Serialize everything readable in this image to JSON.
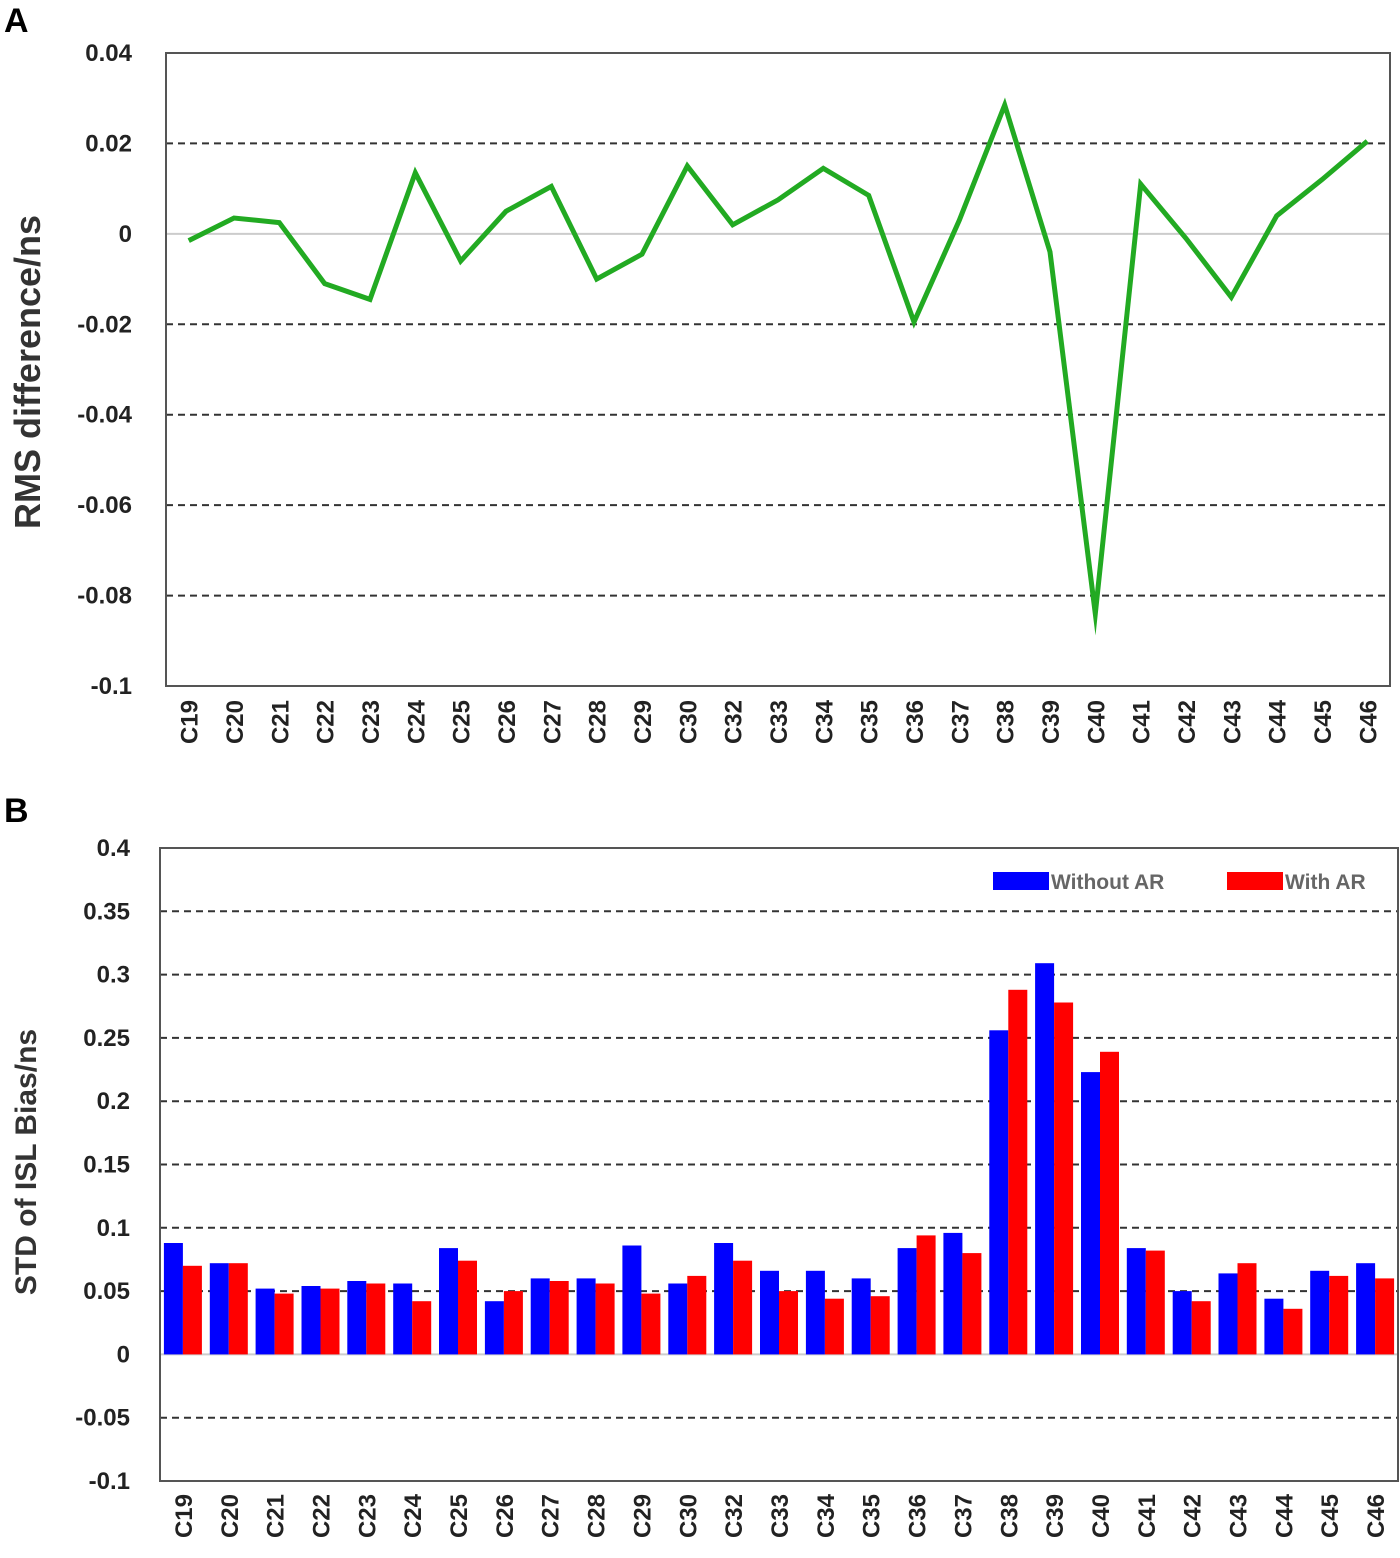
{
  "chart_data": [
    {
      "panel": "A",
      "type": "line",
      "title": "",
      "xlabel": "",
      "ylabel": "RMS difference/ns",
      "ylim": [
        -0.1,
        0.04
      ],
      "yticks": [
        "0.04",
        "0.02",
        "0",
        "-0.02",
        "-0.04",
        "-0.06",
        "-0.08",
        "-0.1"
      ],
      "categories": [
        "C19",
        "C20",
        "C21",
        "C22",
        "C23",
        "C24",
        "C25",
        "C26",
        "C27",
        "C28",
        "C29",
        "C30",
        "C32",
        "C33",
        "C34",
        "C35",
        "C36",
        "C37",
        "C38",
        "C39",
        "C40",
        "C41",
        "C42",
        "C43",
        "C44",
        "C45",
        "C46"
      ],
      "series": [
        {
          "color": "#22aa22",
          "values": [
            -0.0015,
            0.0035,
            0.0025,
            -0.011,
            -0.0145,
            0.0135,
            -0.006,
            0.005,
            0.0105,
            -0.01,
            -0.0045,
            0.015,
            0.002,
            0.0075,
            0.0145,
            0.0085,
            -0.0195,
            0.003,
            0.0285,
            -0.004,
            -0.084,
            0.011,
            -0.001,
            -0.014,
            0.004,
            0.012,
            0.0205
          ]
        }
      ],
      "grid": "dashed"
    },
    {
      "panel": "B",
      "type": "bar",
      "title": "",
      "xlabel": "",
      "ylabel": "STD of ISL Bias/ns",
      "ylim": [
        -0.1,
        0.4
      ],
      "yticks": [
        "0.4",
        "0.35",
        "0.3",
        "0.25",
        "0.2",
        "0.15",
        "0.1",
        "0.05",
        "0",
        "-0.05",
        "-0.1"
      ],
      "categories": [
        "C19",
        "C20",
        "C21",
        "C22",
        "C23",
        "C24",
        "C25",
        "C26",
        "C27",
        "C28",
        "C29",
        "C30",
        "C32",
        "C33",
        "C34",
        "C35",
        "C36",
        "C37",
        "C38",
        "C39",
        "C40",
        "C41",
        "C42",
        "C43",
        "C44",
        "C45",
        "C46"
      ],
      "series": [
        {
          "name": "Without AR",
          "color": "#0000ff",
          "values": [
            0.088,
            0.072,
            0.052,
            0.054,
            0.058,
            0.056,
            0.084,
            0.042,
            0.06,
            0.06,
            0.086,
            0.056,
            0.088,
            0.066,
            0.066,
            0.06,
            0.084,
            0.096,
            0.256,
            0.309,
            0.223,
            0.084,
            0.05,
            0.064,
            0.044,
            0.066,
            0.072
          ]
        },
        {
          "name": "With AR",
          "color": "#ff0000",
          "values": [
            0.07,
            0.072,
            0.048,
            0.052,
            0.056,
            0.042,
            0.074,
            0.05,
            0.058,
            0.056,
            0.048,
            0.062,
            0.074,
            0.05,
            0.044,
            0.046,
            0.094,
            0.08,
            0.288,
            0.278,
            0.239,
            0.082,
            0.042,
            0.072,
            0.036,
            0.062,
            0.06
          ]
        }
      ],
      "legend": "top-right",
      "grid": "dashed"
    }
  ]
}
